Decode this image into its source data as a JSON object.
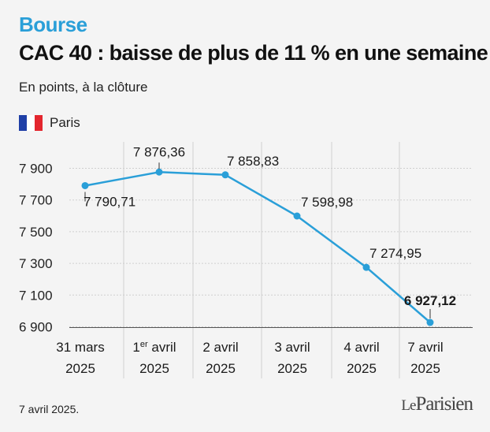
{
  "header": {
    "kicker": "Bourse",
    "title": "CAC 40 : baisse de plus de 11 % en une semaine",
    "subtitle": "En points, à la clôture"
  },
  "legend": {
    "label": "Paris",
    "flag": [
      "#1f3fa6",
      "#ffffff",
      "#e3262e"
    ]
  },
  "footer": {
    "date": "7 avril 2025.",
    "logo_prefix": "Le",
    "logo_name": "Parisien"
  },
  "colors": {
    "line": "#2a9fd8",
    "accent": "#2a9fd8",
    "grid": "#cfcfcf"
  },
  "chart_data": {
    "type": "line",
    "categories": [
      [
        "31 mars",
        "2025"
      ],
      [
        "1er avril",
        "2025"
      ],
      [
        "2 avril",
        "2025"
      ],
      [
        "3 avril",
        "2025"
      ],
      [
        "4 avril",
        "2025"
      ],
      [
        "7 avril",
        "2025"
      ]
    ],
    "values": [
      7790.71,
      7876.36,
      7858.83,
      7598.98,
      7274.95,
      6927.12
    ],
    "labels": [
      "7 790,71",
      "7 876,36",
      "7 858,83",
      "7 598,98",
      "7 274,95",
      "6 927,12"
    ],
    "ylim": [
      6900,
      7950
    ],
    "yticks": [
      6900,
      7100,
      7300,
      7500,
      7700,
      7900
    ],
    "ytick_labels": [
      "6 900",
      "7 100",
      "7 300",
      "7 500",
      "7 700",
      "7 900"
    ],
    "grid": true
  }
}
